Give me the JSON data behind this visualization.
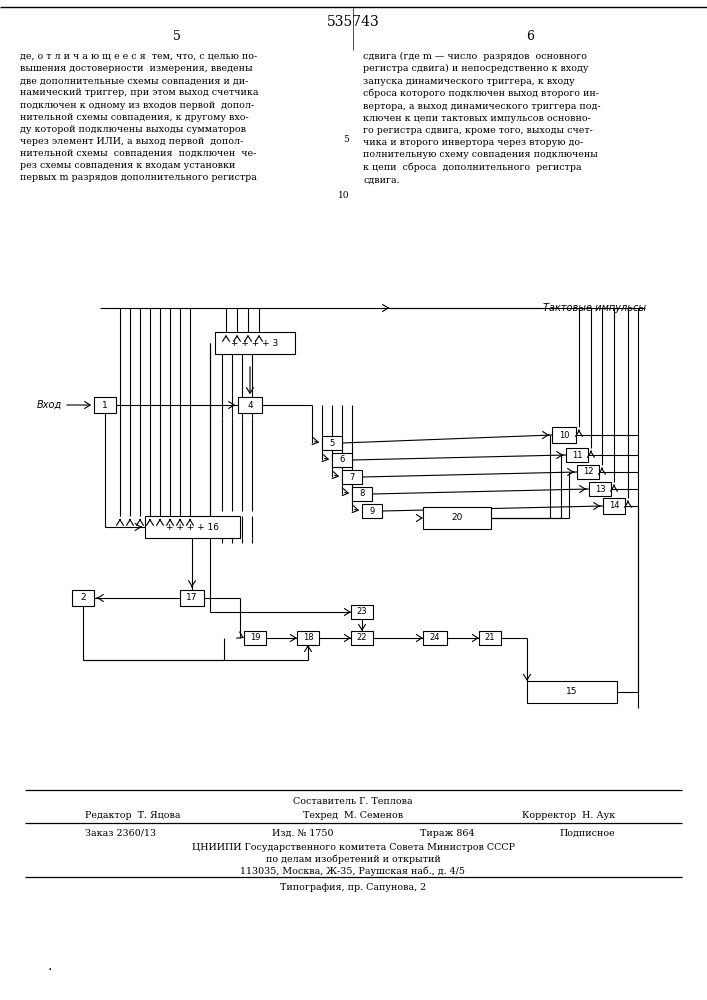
{
  "title": "535743",
  "page_left": "5",
  "page_right": "6",
  "left_col_text": "де, о т л и ч а ю щ е е с я  тем, что, с целью по-\nвышения достоверности  измерения, введены\nдве дополнительные схемы совпадения и ди-\nнамический триггер, при этом выход счетчика\nподключен к одному из входов первой  допол-\nнительной схемы совпадения, к другому вхо-\nду которой подключены выходы сумматоров\nчерез элемент ИЛИ, а выход первой  допол-\nнительной схемы  совпадения  подключен  че-\nрез схемы совпадения к входам установки\nпервых m разрядов дополнительного регистра",
  "right_col_text": "сдвига (где m — число  разрядов  основного\nрегистра сдвига) и непосредственно к входу\nзапуска динамического триггера, к входу\nсброса которого подключен выход второго ин-\nвертора, а выход динамического триггера под-\nключен к цепи тактовых импульсов основно-\nго регистра сдвига, кроме того, выходы счет-\nчика и второго инвертора через вторую до-\nполнительную схему совпадения подключены\nк цепи  сброса  дополнительного  регистра\nсдвига.",
  "line_number_5": "5",
  "line_number_10": "10",
  "takt_label": "Тактовые импульсы",
  "vhod_label": "Вход",
  "footer_composer": "Составитель Г. Теплова",
  "footer_editor": "Редактор  Т. Яцова",
  "footer_techred": "Техред  М. Семенов",
  "footer_corrector": "Корректор  Н. Аук",
  "footer_order": "Заказ 2360/13",
  "footer_izd": "Изд. № 1750",
  "footer_tirazh": "Тираж 864",
  "footer_podpisnoe": "Подписное",
  "footer_org1": "ЦНИИПИ Государственного комитета Совета Министров СССР",
  "footer_org2": "по делам изобретений и открытий",
  "footer_addr": "113035, Москва, Ж-35, Раушская наб., д. 4/5",
  "footer_tipogr": "Типография, пр. Сапунова, 2",
  "bg_color": "#ffffff"
}
